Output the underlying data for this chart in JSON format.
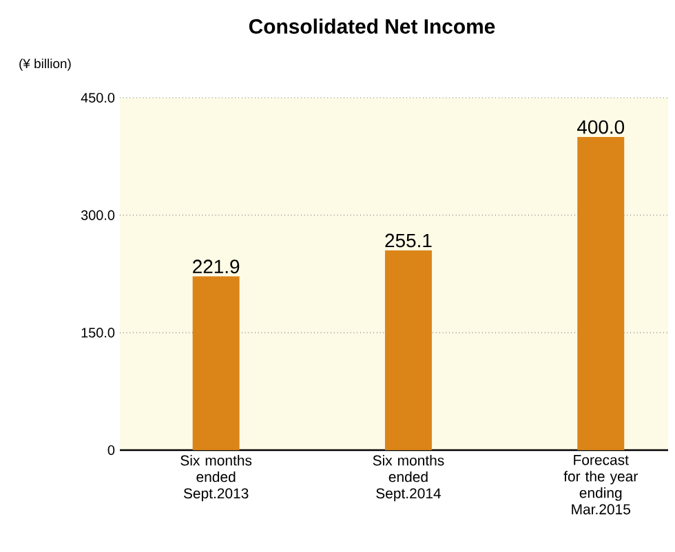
{
  "chart_data": {
    "type": "bar",
    "title": "Consolidated Net Income",
    "ylabel": "(¥ billion)",
    "categories": [
      "Six months ended Sept.2013",
      "Six months ended Sept.2014",
      "Forecast for the year ending Mar.2015"
    ],
    "values": [
      221.9,
      255.1,
      400
    ],
    "value_labels": [
      "221.9",
      "255.1",
      "400.0"
    ],
    "color": "#db8519",
    "ylim": [
      0,
      450
    ],
    "yticks": [
      0,
      {
        "value": 150,
        "label": "150.0"
      },
      {
        "value": 300,
        "label": "300.0"
      },
      {
        "value": 450,
        "label": "450.0"
      }
    ],
    "grid": "y"
  }
}
